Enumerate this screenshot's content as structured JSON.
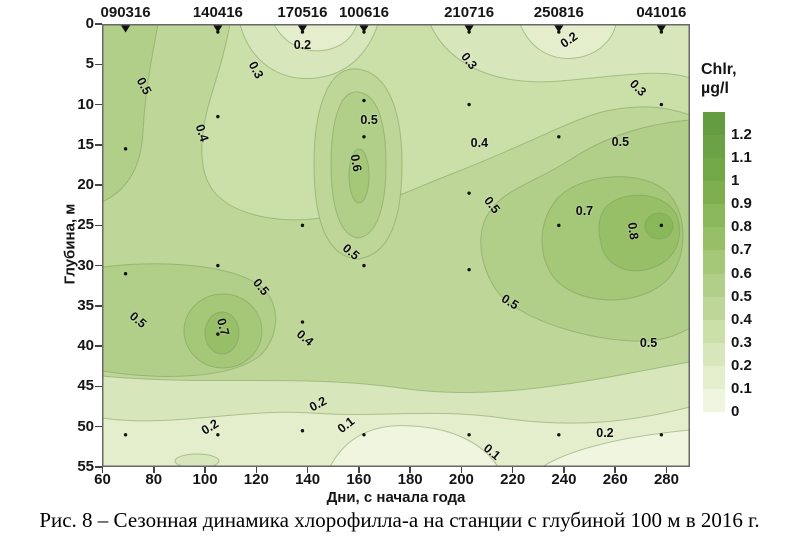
{
  "figure": {
    "caption": "Рис. 8 – Сезонная динамика хлорофилла-а на станции с глубиной 100 м в 2016 г."
  },
  "axes": {
    "x": {
      "title": "Дни, с начала года",
      "min": 60,
      "max": 289,
      "ticks": [
        60,
        80,
        100,
        120,
        140,
        160,
        180,
        200,
        220,
        240,
        260,
        280
      ]
    },
    "y": {
      "title": "Глубина, м",
      "min": 0,
      "max": 55,
      "ticks": [
        0,
        5,
        10,
        15,
        20,
        25,
        30,
        35,
        40,
        45,
        50,
        55
      ]
    }
  },
  "stations": [
    {
      "date": "090316",
      "day": 69,
      "sample_depths": [
        0.5,
        15.5,
        31,
        51
      ]
    },
    {
      "date": "140416",
      "day": 105,
      "sample_depths": [
        1,
        11.5,
        30,
        38.5,
        51
      ]
    },
    {
      "date": "170516",
      "day": 138,
      "sample_depths": [
        1,
        25,
        37,
        50.5
      ]
    },
    {
      "date": "100616",
      "day": 162,
      "sample_depths": [
        1,
        9.5,
        14,
        30,
        51
      ]
    },
    {
      "date": "210716",
      "day": 203,
      "sample_depths": [
        1,
        10,
        21,
        30.5,
        51
      ]
    },
    {
      "date": "250816",
      "day": 238,
      "sample_depths": [
        1,
        14,
        25,
        51
      ]
    },
    {
      "date": "041016",
      "day": 278,
      "sample_depths": [
        1,
        10,
        25,
        51
      ]
    }
  ],
  "contour_labels": [
    {
      "value": "0.5",
      "day": 76,
      "depth": 7.7,
      "rot": 62
    },
    {
      "value": "0.3",
      "day": 120,
      "depth": 5.7,
      "rot": 62
    },
    {
      "value": "0.2",
      "day": 138,
      "depth": 2.6,
      "rot": 0
    },
    {
      "value": "0.4",
      "day": 99,
      "depth": 13.5,
      "rot": 72
    },
    {
      "value": "0.5",
      "day": 164,
      "depth": 11.9,
      "rot": 0
    },
    {
      "value": "0.6",
      "day": 159,
      "depth": 17.3,
      "rot": 80
    },
    {
      "value": "0.2",
      "day": 242,
      "depth": 2.0,
      "rot": -35
    },
    {
      "value": "0.3",
      "day": 203,
      "depth": 4.6,
      "rot": 52
    },
    {
      "value": "0.3",
      "day": 269,
      "depth": 7.9,
      "rot": 45
    },
    {
      "value": "0.4",
      "day": 207,
      "depth": 14.8,
      "rot": 0
    },
    {
      "value": "0.5",
      "day": 262,
      "depth": 14.7,
      "rot": 0
    },
    {
      "value": "0.5",
      "day": 212,
      "depth": 22.5,
      "rot": 52
    },
    {
      "value": "0.7",
      "day": 248,
      "depth": 23.2,
      "rot": 0
    },
    {
      "value": "0.8",
      "day": 267,
      "depth": 25.7,
      "rot": 82
    },
    {
      "value": "0.5",
      "day": 157,
      "depth": 28.3,
      "rot": 40
    },
    {
      "value": "0.5",
      "day": 74,
      "depth": 36.8,
      "rot": 40
    },
    {
      "value": "0.5",
      "day": 122,
      "depth": 32.7,
      "rot": 50
    },
    {
      "value": "0.7",
      "day": 107,
      "depth": 37.6,
      "rot": 75
    },
    {
      "value": "0.4",
      "day": 139,
      "depth": 39.0,
      "rot": 40
    },
    {
      "value": "0.5",
      "day": 219,
      "depth": 34.5,
      "rot": 32
    },
    {
      "value": "0.5",
      "day": 273,
      "depth": 39.6,
      "rot": 0
    },
    {
      "value": "0.2",
      "day": 144,
      "depth": 47.2,
      "rot": -28
    },
    {
      "value": "0.1",
      "day": 155,
      "depth": 49.8,
      "rot": -38
    },
    {
      "value": "0.2",
      "day": 102,
      "depth": 50.0,
      "rot": -32
    },
    {
      "value": "0.2",
      "day": 256,
      "depth": 50.8,
      "rot": 0
    },
    {
      "value": "0.1",
      "day": 212,
      "depth": 53.1,
      "rot": 40
    }
  ],
  "colorbar": {
    "title_line1": "Chlr,",
    "title_line2": "µg/l",
    "labels": [
      "1.2",
      "1.1",
      "1",
      "0.9",
      "0.8",
      "0.7",
      "0.6",
      "0.5",
      "0.4",
      "0.3",
      "0.2",
      "0.1",
      "0"
    ],
    "colors_top_to_bottom": [
      "#649c41",
      "#6ba245",
      "#73a847",
      "#7eae4e",
      "#8ab75a",
      "#97bf68",
      "#a4c778",
      "#b1cf88",
      "#bed798",
      "#cbdfa9",
      "#d8e7bb",
      "#e4eecd",
      "#eff5df"
    ]
  },
  "chart_data": {
    "type": "heatmap",
    "subtype": "filled-contour",
    "title": "",
    "xlabel": "Дни, с начала года",
    "ylabel": "Глубина, м",
    "xlim": [
      60,
      289
    ],
    "ylim": [
      55,
      0
    ],
    "colorbar_label": "Chlr, µg/l",
    "contour_levels": [
      0,
      0.1,
      0.2,
      0.3,
      0.4,
      0.5,
      0.6,
      0.7,
      0.8,
      0.9,
      1.0,
      1.1,
      1.2
    ],
    "station_dates": [
      "090316",
      "140416",
      "170516",
      "100616",
      "210716",
      "250816",
      "041016"
    ],
    "station_days": [
      69,
      105,
      138,
      162,
      203,
      238,
      278
    ],
    "labeled_contour_points": [
      {
        "day": 76,
        "depth": 7.7,
        "value": 0.5
      },
      {
        "day": 120,
        "depth": 5.7,
        "value": 0.3
      },
      {
        "day": 138,
        "depth": 2.6,
        "value": 0.2
      },
      {
        "day": 99,
        "depth": 13.5,
        "value": 0.4
      },
      {
        "day": 164,
        "depth": 11.9,
        "value": 0.5
      },
      {
        "day": 159,
        "depth": 17.3,
        "value": 0.6
      },
      {
        "day": 242,
        "depth": 2.0,
        "value": 0.2
      },
      {
        "day": 203,
        "depth": 4.6,
        "value": 0.3
      },
      {
        "day": 269,
        "depth": 7.9,
        "value": 0.3
      },
      {
        "day": 207,
        "depth": 14.8,
        "value": 0.4
      },
      {
        "day": 262,
        "depth": 14.7,
        "value": 0.5
      },
      {
        "day": 212,
        "depth": 22.5,
        "value": 0.5
      },
      {
        "day": 248,
        "depth": 23.2,
        "value": 0.7
      },
      {
        "day": 267,
        "depth": 25.7,
        "value": 0.8
      },
      {
        "day": 157,
        "depth": 28.3,
        "value": 0.5
      },
      {
        "day": 74,
        "depth": 36.8,
        "value": 0.5
      },
      {
        "day": 122,
        "depth": 32.7,
        "value": 0.5
      },
      {
        "day": 107,
        "depth": 37.6,
        "value": 0.7
      },
      {
        "day": 139,
        "depth": 39.0,
        "value": 0.4
      },
      {
        "day": 219,
        "depth": 34.5,
        "value": 0.5
      },
      {
        "day": 273,
        "depth": 39.6,
        "value": 0.5
      },
      {
        "day": 144,
        "depth": 47.2,
        "value": 0.2
      },
      {
        "day": 155,
        "depth": 49.8,
        "value": 0.1
      },
      {
        "day": 102,
        "depth": 50.0,
        "value": 0.2
      },
      {
        "day": 256,
        "depth": 50.8,
        "value": 0.2
      },
      {
        "day": 212,
        "depth": 53.1,
        "value": 0.1
      },
      {
        "day": 107,
        "depth": 37.9,
        "value": "local max ~0.7-0.8"
      },
      {
        "day": 267,
        "depth": 25.2,
        "value": "local max ~0.8-0.9"
      }
    ]
  }
}
